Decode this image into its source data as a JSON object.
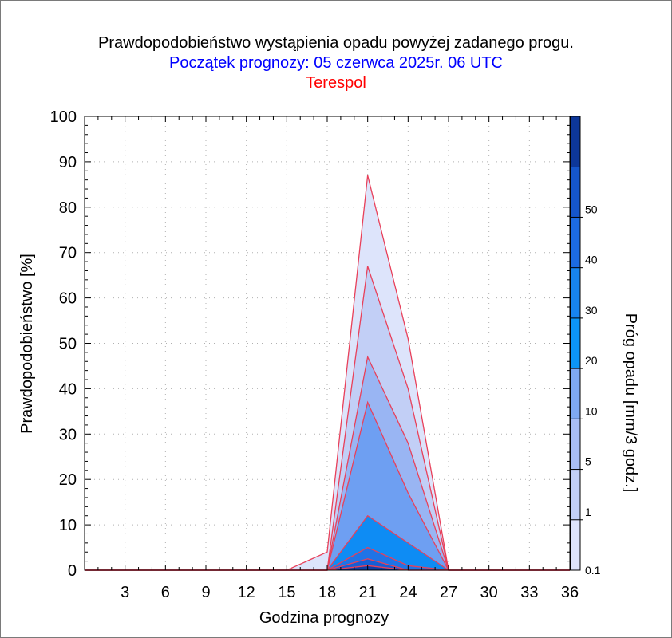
{
  "chart_data": {
    "type": "area",
    "title": "Prawdopodobieństwo wystąpienia opadu powyżej zadanego progu.",
    "subtitle": "Początek prognozy: 05 czerwca 2025r. 06 UTC",
    "location": "Terespol",
    "xlabel": "Godzina prognozy",
    "ylabel": "Prawdopodobieństwo [%]",
    "colorbar_label": "Próg opadu [mm/3 godz.]",
    "xlim": [
      0,
      36
    ],
    "ylim": [
      0,
      100
    ],
    "x_ticks": [
      3,
      6,
      9,
      12,
      15,
      18,
      21,
      24,
      27,
      30,
      33,
      36
    ],
    "y_ticks": [
      0,
      10,
      20,
      30,
      40,
      50,
      60,
      70,
      80,
      90,
      100
    ],
    "grid": true,
    "x": [
      0,
      3,
      6,
      9,
      12,
      15,
      18,
      21,
      24,
      27,
      30,
      33,
      36
    ],
    "series": [
      {
        "threshold": 0.1,
        "color": "#dde4fb",
        "values": [
          0,
          0,
          0,
          0,
          0,
          0,
          4,
          87,
          51,
          0,
          0,
          0,
          0
        ]
      },
      {
        "threshold": 1,
        "color": "#c2cff6",
        "values": [
          0,
          0,
          0,
          0,
          0,
          0,
          0,
          67,
          40,
          0,
          0,
          0,
          0
        ]
      },
      {
        "threshold": 5,
        "color": "#99b5f3",
        "values": [
          0,
          0,
          0,
          0,
          0,
          0,
          0,
          47,
          28,
          0,
          0,
          0,
          0
        ]
      },
      {
        "threshold": 10,
        "color": "#6e9ff2",
        "values": [
          0,
          0,
          0,
          0,
          0,
          0,
          0,
          37,
          17,
          0,
          0,
          0,
          0
        ]
      },
      {
        "threshold": 20,
        "color": "#0e8cf4",
        "values": [
          0,
          0,
          0,
          0,
          0,
          0,
          0,
          12,
          6,
          0,
          0,
          0,
          0
        ]
      },
      {
        "threshold": 30,
        "color": "#1f74e6",
        "values": [
          0,
          0,
          0,
          0,
          0,
          0,
          0,
          5,
          1,
          0,
          0,
          0,
          0
        ]
      },
      {
        "threshold": 40,
        "color": "#155ed5",
        "values": [
          0,
          0,
          0,
          0,
          0,
          0,
          0,
          2.5,
          0,
          0,
          0,
          0,
          0
        ]
      },
      {
        "threshold": 50,
        "color": "#0f3fa6",
        "values": [
          0,
          0,
          0,
          0,
          0,
          0,
          0,
          1,
          0,
          0,
          0,
          0,
          0
        ]
      }
    ],
    "colorbar": {
      "labels": [
        "0.1",
        "1",
        "5",
        "10",
        "20",
        "30",
        "40",
        "50"
      ],
      "colors": [
        "#dde4fb",
        "#c2cff6",
        "#a9bef5",
        "#7fa9f3",
        "#0c95f6",
        "#1784ef",
        "#1c6be2",
        "#1556cc",
        "#0d3799"
      ]
    },
    "outline_color": "#e8405a"
  }
}
